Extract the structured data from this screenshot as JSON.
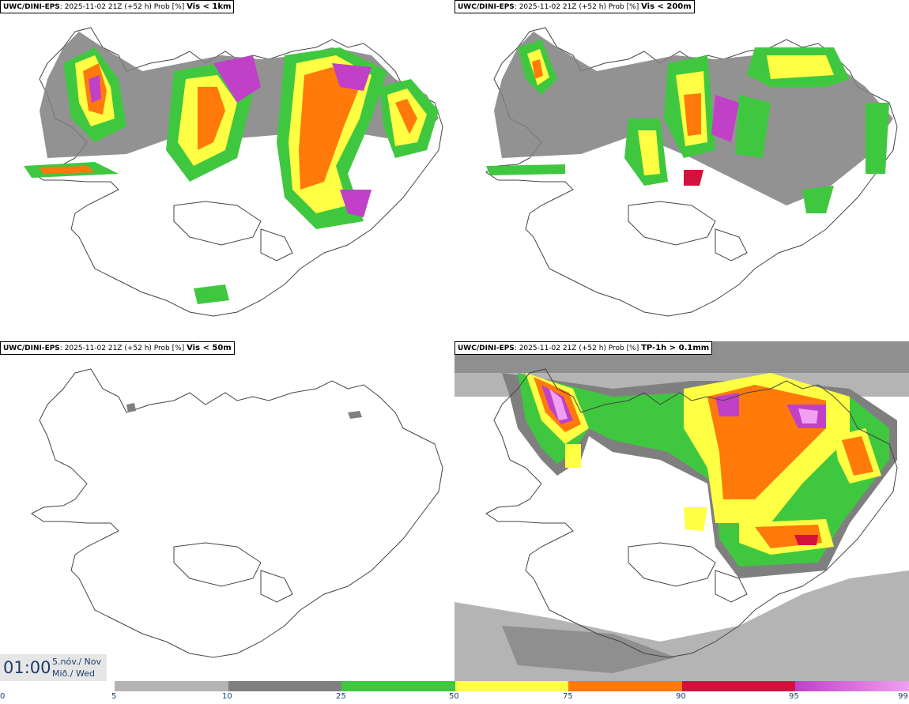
{
  "panels": [
    {
      "model": "UWC/DINI-EPS",
      "info": ": 2025-11-02 21Z (+52 h) Prob [%]",
      "variable": "Vis < 1km"
    },
    {
      "model": "UWC/DINI-EPS",
      "info": ": 2025-11-02 21Z (+52 h) Prob [%]",
      "variable": "Vis < 200m"
    },
    {
      "model": "UWC/DINI-EPS",
      "info": ": 2025-11-02 21Z (+52 h) Prob [%]",
      "variable": "Vis < 50m"
    },
    {
      "model": "UWC/DINI-EPS",
      "info": ": 2025-11-02 21Z (+52 h) Prob [%]",
      "variable": "TP-1h > 0.1mm"
    }
  ],
  "time": {
    "clock": "01:00",
    "date": "5.nóv./ Nov",
    "weekday": "Mið./ Wed"
  },
  "legend": {
    "ticks": [
      "0",
      "5",
      "10",
      "25",
      "50",
      "75",
      "90",
      "95",
      "99"
    ],
    "colors": [
      "#b4b4b4",
      "#7f7f7f",
      "#3fc83f",
      "#ffff44",
      "#ff7a0a",
      "#d2123c",
      "#c040c8",
      "#f0a0f0"
    ]
  }
}
